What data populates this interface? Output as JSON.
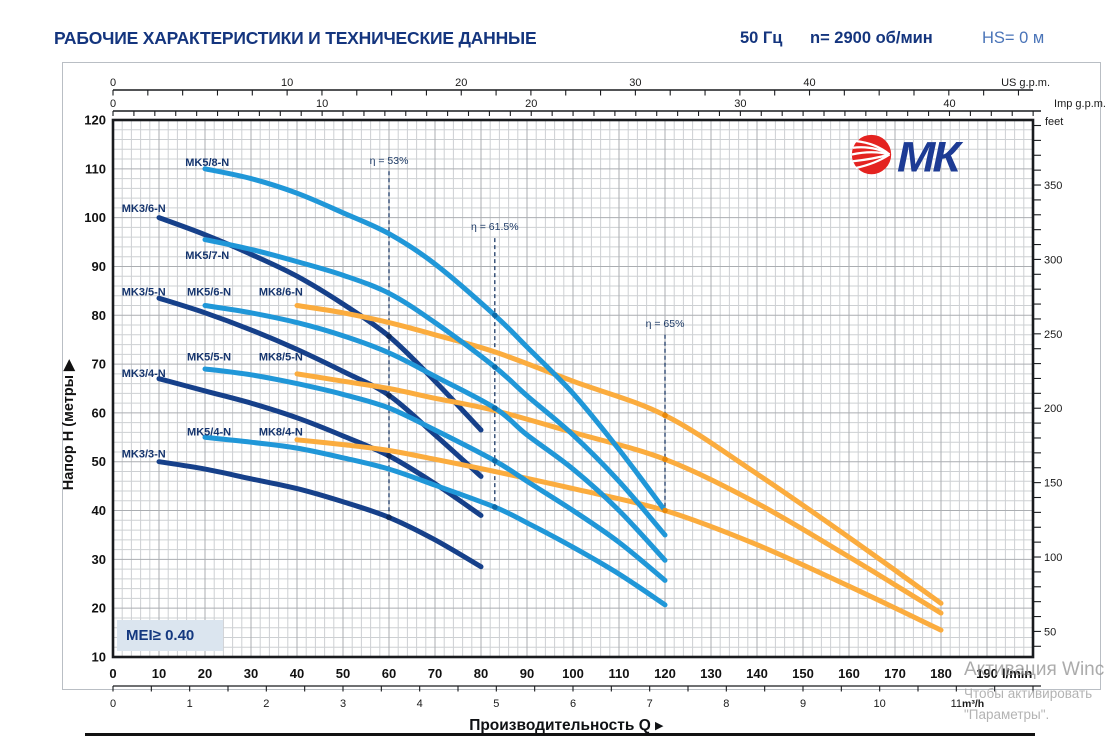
{
  "header": {
    "title": "РАБОЧИЕ ХАРАКТЕРИСТИКИ И ТЕХНИЧЕСКИЕ ДАННЫЕ",
    "frequency": "50 Гц",
    "speed": "n= 2900 об/мин",
    "suction_head": "HS= 0 м"
  },
  "logo": {
    "brand": "МК"
  },
  "mei_badge": "MEI≥ 0.40",
  "watermark": {
    "line1": "Активация Winc",
    "line2": "Чтобы активировать",
    "line3": "\"Параметры\"."
  },
  "chart_data": {
    "type": "line",
    "title": "",
    "xlabel": "Производительность Q",
    "xlabel_arrow": "▶",
    "ylabel": "Напор H (метры",
    "ylabel_arrow": "▶",
    "xlim_lmin": [
      0,
      200
    ],
    "ylim_m": [
      10,
      120
    ],
    "grid": {
      "visible": true,
      "minor_step": 2,
      "major_step": 10
    },
    "x_axes": [
      {
        "id": "us_gpm",
        "unit": "US g.p.m.",
        "labels": [
          0,
          10,
          20,
          30,
          40
        ],
        "minor_step": 2,
        "max": 52,
        "lmin_per_unit": 3.7854
      },
      {
        "id": "imp_gpm",
        "unit": "Imp g.p.m.",
        "labels": [
          0,
          10,
          20,
          30,
          40
        ],
        "minor_step": 1,
        "max": 44,
        "lmin_per_unit": 4.5461
      },
      {
        "id": "lmin",
        "unit": "l/min",
        "labels": [
          0,
          10,
          20,
          30,
          40,
          50,
          60,
          70,
          80,
          90,
          100,
          110,
          120,
          130,
          140,
          150,
          160,
          170,
          180,
          190
        ],
        "lmin_per_unit": 1
      },
      {
        "id": "m3h",
        "unit": "m³/h",
        "labels": [
          0,
          1,
          2,
          3,
          4,
          5,
          6,
          7,
          8,
          9,
          10,
          11
        ],
        "minor_step": 0.5,
        "max": 12,
        "lmin_per_unit": 16.6667
      }
    ],
    "y_axes": [
      {
        "id": "meters",
        "unit": "",
        "labels": [
          10,
          20,
          30,
          40,
          50,
          60,
          70,
          80,
          90,
          100,
          110,
          120
        ]
      },
      {
        "id": "feet",
        "unit": "feet",
        "labels": [
          50,
          100,
          150,
          200,
          250,
          300,
          350
        ],
        "minor_step": 10,
        "min": 40,
        "max": 390,
        "m_per_unit": 0.3048
      }
    ],
    "colors": {
      "mk3_family": "#16408a",
      "mk5_family": "#2097d8",
      "mk8_family": "#fbac3e",
      "label": "#16356e",
      "efficiency": "#1d3a66"
    },
    "series": [
      {
        "name": "MK3/6-N",
        "family": "MK3",
        "color": "#16408a",
        "label_q": 1.9,
        "label_h": 101.2,
        "points": [
          [
            10,
            100
          ],
          [
            20,
            96.5
          ],
          [
            30,
            92.5
          ],
          [
            40,
            88
          ],
          [
            50,
            82.3
          ],
          [
            60,
            75.7
          ],
          [
            70,
            66.5
          ],
          [
            80,
            56.5
          ]
        ]
      },
      {
        "name": "MK3/5-N",
        "family": "MK3",
        "color": "#16408a",
        "label_q": 1.9,
        "label_h": 84.0,
        "points": [
          [
            10,
            83.5
          ],
          [
            20,
            80.5
          ],
          [
            30,
            77
          ],
          [
            40,
            73
          ],
          [
            50,
            68.5
          ],
          [
            60,
            63.6
          ],
          [
            70,
            55.5
          ],
          [
            80,
            47
          ]
        ]
      },
      {
        "name": "MK3/4-N",
        "family": "MK3",
        "color": "#16408a",
        "label_q": 1.9,
        "label_h": 67.4,
        "points": [
          [
            10,
            67
          ],
          [
            20,
            64.5
          ],
          [
            30,
            62
          ],
          [
            40,
            59
          ],
          [
            50,
            55.3
          ],
          [
            60,
            51.2
          ],
          [
            70,
            45.5
          ],
          [
            80,
            39
          ]
        ]
      },
      {
        "name": "MK3/3-N",
        "family": "MK3",
        "color": "#16408a",
        "label_q": 1.9,
        "label_h": 50.9,
        "points": [
          [
            10,
            50
          ],
          [
            20,
            48.5
          ],
          [
            30,
            46.5
          ],
          [
            40,
            44.5
          ],
          [
            50,
            41.8
          ],
          [
            60,
            38.6
          ],
          [
            70,
            34
          ],
          [
            80,
            28.5
          ]
        ]
      },
      {
        "name": "MK5/8-N",
        "family": "MK5",
        "color": "#2097d8",
        "label_q": 15.7,
        "label_h": 110.6,
        "points": [
          [
            20,
            110
          ],
          [
            30,
            108
          ],
          [
            40,
            105
          ],
          [
            50,
            101
          ],
          [
            60,
            96.7
          ],
          [
            70,
            90.5
          ],
          [
            83,
            80
          ],
          [
            90,
            73.5
          ],
          [
            100,
            64
          ],
          [
            110,
            52.5
          ],
          [
            120,
            40
          ]
        ]
      },
      {
        "name": "MK5/7-N",
        "family": "MK5",
        "color": "#2097d8",
        "label_q": 15.7,
        "label_h": 91.5,
        "points": [
          [
            20,
            95.5
          ],
          [
            30,
            93.5
          ],
          [
            40,
            91
          ],
          [
            50,
            88.2
          ],
          [
            60,
            84.5
          ],
          [
            70,
            78.5
          ],
          [
            83,
            69.4
          ],
          [
            90,
            63.5
          ],
          [
            100,
            55.5
          ],
          [
            110,
            46
          ],
          [
            120,
            35
          ]
        ]
      },
      {
        "name": "MK5/6-N",
        "family": "MK5",
        "color": "#2097d8",
        "label_q": 16.1,
        "label_h": 84.0,
        "points": [
          [
            20,
            82
          ],
          [
            30,
            80.5
          ],
          [
            40,
            78.5
          ],
          [
            50,
            75.8
          ],
          [
            60,
            72.3
          ],
          [
            70,
            67.5
          ],
          [
            83,
            61
          ],
          [
            90,
            55.5
          ],
          [
            100,
            48.5
          ],
          [
            110,
            40
          ],
          [
            120,
            29.8
          ]
        ]
      },
      {
        "name": "MK5/5-N",
        "family": "MK5",
        "color": "#2097d8",
        "label_q": 16.1,
        "label_h": 70.7,
        "points": [
          [
            20,
            69
          ],
          [
            30,
            67.8
          ],
          [
            40,
            66
          ],
          [
            50,
            63.8
          ],
          [
            60,
            61
          ],
          [
            70,
            56.5
          ],
          [
            83,
            50.2
          ],
          [
            90,
            46
          ],
          [
            100,
            40
          ],
          [
            110,
            33.5
          ],
          [
            120,
            25.7
          ]
        ]
      },
      {
        "name": "MK5/4-N",
        "family": "MK5",
        "color": "#2097d8",
        "label_q": 16.1,
        "label_h": 55.4,
        "points": [
          [
            20,
            55
          ],
          [
            30,
            54
          ],
          [
            40,
            52.8
          ],
          [
            50,
            50.8
          ],
          [
            60,
            48.5
          ],
          [
            70,
            45.2
          ],
          [
            83,
            40.7
          ],
          [
            90,
            37.5
          ],
          [
            100,
            32.5
          ],
          [
            110,
            27
          ],
          [
            120,
            20.7
          ]
        ]
      },
      {
        "name": "MK8/6-N",
        "family": "MK8",
        "color": "#fbac3e",
        "label_q": 31.7,
        "label_h": 84.0,
        "points": [
          [
            40,
            82
          ],
          [
            50,
            80.5
          ],
          [
            60,
            78.5
          ],
          [
            70,
            76
          ],
          [
            83,
            72.5
          ],
          [
            100,
            66.5
          ],
          [
            120,
            59.5
          ],
          [
            140,
            47.5
          ],
          [
            160,
            34.5
          ],
          [
            180,
            21
          ]
        ]
      },
      {
        "name": "MK8/5-N",
        "family": "MK8",
        "color": "#fbac3e",
        "label_q": 31.7,
        "label_h": 70.7,
        "points": [
          [
            40,
            68
          ],
          [
            50,
            66.5
          ],
          [
            60,
            65
          ],
          [
            70,
            63
          ],
          [
            83,
            60.5
          ],
          [
            100,
            56
          ],
          [
            120,
            50.5
          ],
          [
            140,
            41.5
          ],
          [
            160,
            30.5
          ],
          [
            180,
            19
          ]
        ]
      },
      {
        "name": "MK8/4-N",
        "family": "MK8",
        "color": "#fbac3e",
        "label_q": 31.7,
        "label_h": 55.4,
        "points": [
          [
            40,
            54.5
          ],
          [
            50,
            53.5
          ],
          [
            60,
            52.3
          ],
          [
            70,
            50.5
          ],
          [
            83,
            48
          ],
          [
            100,
            44.5
          ],
          [
            120,
            40
          ],
          [
            140,
            33
          ],
          [
            160,
            24.5
          ],
          [
            180,
            15.5
          ]
        ]
      }
    ],
    "efficiency_lines": [
      {
        "label": "η = 53%",
        "q": 60,
        "label_h": 111,
        "line_top_h": 109.5,
        "line_bottom_h": 38.6,
        "bep": [
          [
            60,
            75.7
          ],
          [
            60,
            63.6
          ],
          [
            60,
            51.2
          ],
          [
            60,
            38.6
          ]
        ],
        "dot_color": "#0e2a5c"
      },
      {
        "label": "η = 61.5%",
        "q": 83,
        "label_h": 97.5,
        "line_top_h": 95.8,
        "line_bottom_h": 40.7,
        "bep": [
          [
            83,
            80
          ],
          [
            83,
            69.4
          ],
          [
            83,
            61
          ],
          [
            83,
            50.2
          ],
          [
            83,
            40.7
          ]
        ],
        "dot_color": "#0d6aa8"
      },
      {
        "label": "η = 65%",
        "q": 120,
        "label_h": 77.6,
        "line_top_h": 76,
        "line_bottom_h": 40,
        "bep": [
          [
            120,
            59.5
          ],
          [
            120,
            50.5
          ],
          [
            120,
            40
          ]
        ],
        "dot_color": "#e8880a"
      }
    ]
  }
}
